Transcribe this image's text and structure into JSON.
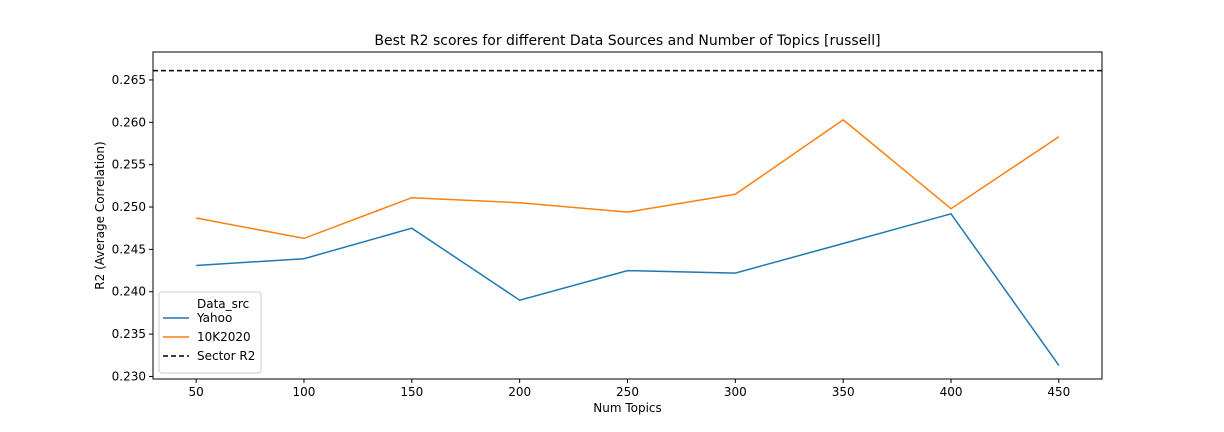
{
  "chart_data": {
    "type": "line",
    "title": "Best R2 scores for different Data Sources and Number of Topics [russell]",
    "xlabel": "Num Topics",
    "ylabel": "R2 (Average Correlation)",
    "x": [
      50,
      100,
      150,
      200,
      250,
      300,
      350,
      400,
      450
    ],
    "xlim": [
      30,
      470
    ],
    "ylim": [
      0.2297,
      0.2683
    ],
    "xticks": [
      50,
      100,
      150,
      200,
      250,
      300,
      350,
      400,
      450
    ],
    "yticks": [
      0.23,
      0.235,
      0.24,
      0.245,
      0.25,
      0.255,
      0.26,
      0.265
    ],
    "grid": false,
    "legend": {
      "title": "Data_src",
      "placement": "lower-left"
    },
    "series": [
      {
        "name": "Yahoo",
        "color": "#1f77b4",
        "values": [
          0.2431,
          0.2439,
          0.2475,
          0.239,
          0.2425,
          0.2422,
          0.2457,
          0.2492,
          0.2313
        ]
      },
      {
        "name": "10K2020",
        "color": "#ff7f0e",
        "values": [
          0.2487,
          0.2463,
          0.2511,
          0.2505,
          0.2494,
          0.2515,
          0.2603,
          0.2498,
          0.2583
        ]
      }
    ],
    "reference_lines": [
      {
        "name": "Sector R2",
        "value": 0.2661,
        "color": "#000000",
        "style": "dashed"
      }
    ]
  }
}
